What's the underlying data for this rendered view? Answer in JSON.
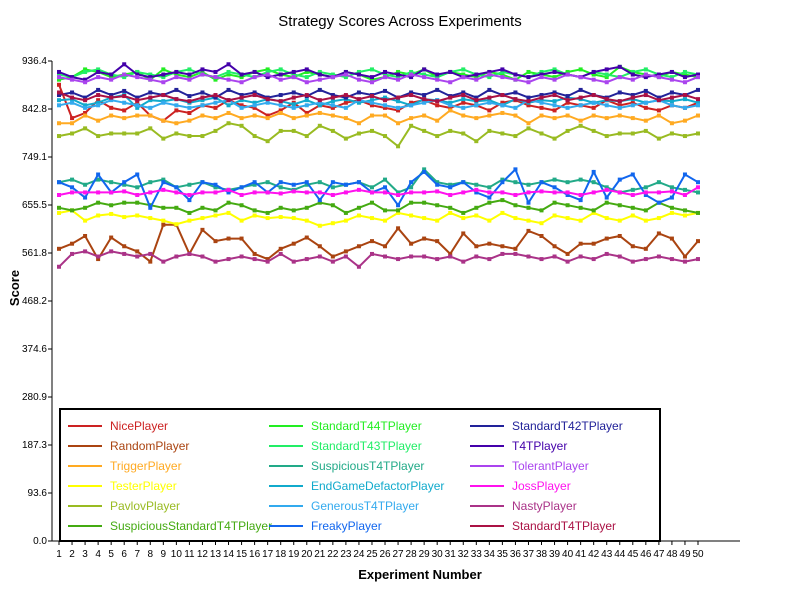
{
  "chart_data": {
    "type": "line",
    "title": "Strategy Scores Across Experiments",
    "xlabel": "Experiment Number",
    "ylabel": "Score",
    "ylim": [
      0,
      936.4
    ],
    "yticks": [
      "0.0",
      "93.6",
      "187.3",
      "280.9",
      "374.6",
      "468.2",
      "561.8",
      "655.5",
      "749.1",
      "842.8",
      "936.4"
    ],
    "x": [
      1,
      2,
      3,
      4,
      5,
      6,
      7,
      8,
      9,
      10,
      11,
      12,
      13,
      14,
      15,
      16,
      17,
      18,
      19,
      20,
      21,
      22,
      23,
      24,
      25,
      26,
      27,
      28,
      29,
      30,
      31,
      32,
      33,
      34,
      35,
      36,
      37,
      38,
      39,
      40,
      41,
      42,
      43,
      44,
      45,
      46,
      47,
      48,
      49,
      50
    ],
    "grid": false,
    "legend_position": "bottom",
    "series": [
      {
        "name": "NicePlayer",
        "color": "#cc2222",
        "values": [
          890,
          825,
          835,
          860,
          845,
          840,
          855,
          830,
          820,
          840,
          835,
          850,
          845,
          860,
          850,
          845,
          830,
          840,
          855,
          835,
          850,
          845,
          855,
          860,
          850,
          845,
          840,
          855,
          860,
          850,
          845,
          855,
          850,
          840,
          855,
          860,
          850,
          845,
          840,
          855,
          850,
          845,
          860,
          850,
          855,
          845,
          840,
          850,
          845,
          855
        ]
      },
      {
        "name": "RandomPlayer",
        "color": "#aa4411",
        "values": [
          570,
          580,
          595,
          550,
          592,
          575,
          565,
          545,
          617,
          617,
          560,
          607,
          585,
          590,
          590,
          560,
          550,
          570,
          580,
          592,
          575,
          555,
          565,
          575,
          585,
          575,
          610,
          580,
          590,
          585,
          560,
          600,
          575,
          580,
          575,
          570,
          605,
          595,
          575,
          560,
          580,
          580,
          590,
          595,
          575,
          570,
          600,
          590,
          555,
          585
        ]
      },
      {
        "name": "TriggerPlayer",
        "color": "#ffaa22",
        "values": [
          815,
          815,
          830,
          820,
          830,
          825,
          830,
          830,
          820,
          815,
          820,
          830,
          825,
          835,
          825,
          830,
          825,
          835,
          825,
          830,
          835,
          830,
          825,
          815,
          830,
          830,
          815,
          825,
          830,
          820,
          840,
          830,
          825,
          830,
          835,
          830,
          815,
          830,
          825,
          830,
          820,
          830,
          825,
          830,
          825,
          820,
          830,
          815,
          820,
          830
        ]
      },
      {
        "name": "TesterPlayer",
        "color": "#ffff00",
        "values": [
          640,
          645,
          625,
          635,
          638,
          632,
          635,
          630,
          625,
          618,
          625,
          630,
          635,
          640,
          625,
          635,
          630,
          632,
          630,
          625,
          615,
          620,
          625,
          635,
          630,
          625,
          640,
          635,
          630,
          625,
          640,
          630,
          635,
          625,
          640,
          630,
          625,
          620,
          635,
          630,
          625,
          640,
          630,
          625,
          635,
          625,
          630,
          640,
          635,
          640
        ]
      },
      {
        "name": "PavlovPlayer",
        "color": "#99bb22",
        "values": [
          790,
          795,
          805,
          790,
          795,
          795,
          795,
          805,
          785,
          795,
          790,
          790,
          800,
          815,
          810,
          790,
          780,
          800,
          800,
          790,
          810,
          800,
          785,
          795,
          800,
          790,
          770,
          810,
          800,
          790,
          800,
          795,
          780,
          800,
          795,
          790,
          805,
          795,
          785,
          800,
          810,
          800,
          790,
          795,
          795,
          800,
          785,
          795,
          790,
          795
        ]
      },
      {
        "name": "SuspiciousStandardT4TPlayer",
        "color": "#44aa11",
        "values": [
          650,
          645,
          650,
          660,
          655,
          660,
          660,
          655,
          650,
          650,
          640,
          650,
          645,
          660,
          655,
          645,
          640,
          650,
          645,
          650,
          660,
          655,
          640,
          650,
          660,
          645,
          645,
          660,
          660,
          655,
          650,
          640,
          650,
          660,
          665,
          655,
          650,
          645,
          660,
          655,
          650,
          645,
          660,
          655,
          650,
          645,
          660,
          650,
          645,
          640
        ]
      },
      {
        "name": "StandardT44TPlayer",
        "color": "#22ee22",
        "values": [
          900,
          905,
          920,
          915,
          905,
          910,
          915,
          900,
          920,
          910,
          905,
          915,
          900,
          910,
          905,
          915,
          920,
          910,
          905,
          915,
          910,
          905,
          915,
          910,
          900,
          905,
          915,
          910,
          920,
          905,
          915,
          910,
          905,
          915,
          910,
          900,
          915,
          910,
          905,
          915,
          920,
          910,
          905,
          925,
          915,
          910,
          905,
          915,
          910,
          905
        ]
      },
      {
        "name": "StandardT43TPlayer",
        "color": "#22ee66",
        "values": [
          910,
          905,
          915,
          920,
          910,
          905,
          915,
          910,
          905,
          915,
          920,
          910,
          905,
          915,
          910,
          905,
          915,
          920,
          910,
          905,
          915,
          910,
          905,
          915,
          920,
          910,
          905,
          915,
          910,
          905,
          915,
          920,
          910,
          905,
          915,
          910,
          905,
          915,
          920,
          910,
          905,
          915,
          910,
          905,
          915,
          920,
          910,
          905,
          915,
          910
        ]
      },
      {
        "name": "SuspiciousT4TPlayer",
        "color": "#22aa88",
        "values": [
          700,
          705,
          695,
          705,
          700,
          695,
          690,
          700,
          705,
          690,
          695,
          700,
          690,
          685,
          690,
          695,
          700,
          690,
          685,
          695,
          700,
          690,
          695,
          700,
          690,
          705,
          680,
          690,
          725,
          700,
          695,
          700,
          695,
          690,
          705,
          700,
          695,
          700,
          705,
          700,
          705,
          700,
          690,
          680,
          685,
          690,
          700,
          690,
          685,
          680
        ]
      },
      {
        "name": "EndGameDefactorPlayer",
        "color": "#11aacc",
        "values": [
          860,
          862,
          850,
          855,
          865,
          870,
          845,
          860,
          858,
          862,
          855,
          860,
          865,
          850,
          860,
          855,
          862,
          858,
          852,
          860,
          850,
          858,
          862,
          855,
          860,
          865,
          858,
          850,
          862,
          860,
          855,
          862,
          858,
          860,
          850,
          862,
          855,
          860,
          858,
          865,
          862,
          855,
          860,
          858,
          862,
          855,
          860,
          858,
          862,
          855
        ]
      },
      {
        "name": "GenerousT4TPlayer",
        "color": "#33aaee",
        "values": [
          850,
          855,
          845,
          850,
          860,
          855,
          850,
          845,
          855,
          850,
          845,
          850,
          855,
          860,
          845,
          850,
          855,
          850,
          845,
          850,
          855,
          850,
          845,
          860,
          855,
          850,
          845,
          850,
          855,
          860,
          850,
          845,
          850,
          855,
          850,
          845,
          860,
          855,
          850,
          845,
          850,
          855,
          850,
          845,
          850,
          855,
          860,
          850,
          845,
          850
        ]
      },
      {
        "name": "FreakyPlayer",
        "color": "#1166ee",
        "values": [
          700,
          690,
          670,
          715,
          680,
          700,
          715,
          650,
          700,
          690,
          665,
          700,
          695,
          680,
          690,
          700,
          680,
          700,
          695,
          700,
          665,
          700,
          695,
          700,
          680,
          690,
          655,
          700,
          720,
          695,
          690,
          700,
          680,
          670,
          700,
          725,
          660,
          700,
          690,
          675,
          665,
          720,
          670,
          705,
          715,
          675,
          660,
          670,
          715,
          700
        ]
      },
      {
        "name": "StandardT42TPlayer",
        "color": "#222299",
        "values": [
          870,
          875,
          865,
          880,
          870,
          878,
          865,
          875,
          870,
          880,
          868,
          875,
          865,
          880,
          870,
          875,
          865,
          870,
          875,
          868,
          880,
          870,
          865,
          875,
          870,
          878,
          865,
          875,
          870,
          880,
          868,
          875,
          865,
          880,
          870,
          875,
          865,
          870,
          875,
          868,
          880,
          870,
          865,
          875,
          870,
          878,
          865,
          875,
          870,
          880
        ]
      },
      {
        "name": "T4TPlayer",
        "color": "#4400aa",
        "values": [
          915,
          905,
          900,
          915,
          910,
          930,
          910,
          905,
          910,
          915,
          910,
          920,
          915,
          930,
          910,
          915,
          905,
          910,
          915,
          920,
          910,
          905,
          915,
          910,
          905,
          915,
          910,
          905,
          920,
          910,
          915,
          905,
          910,
          915,
          920,
          910,
          905,
          910,
          915,
          910,
          905,
          915,
          920,
          925,
          910,
          905,
          910,
          915,
          905,
          910
        ]
      },
      {
        "name": "TolerantPlayer",
        "color": "#aa44ee",
        "values": [
          905,
          900,
          895,
          905,
          900,
          910,
          905,
          900,
          895,
          905,
          900,
          910,
          905,
          900,
          895,
          905,
          910,
          900,
          905,
          895,
          900,
          905,
          910,
          900,
          895,
          905,
          900,
          910,
          905,
          900,
          895,
          905,
          900,
          910,
          905,
          900,
          895,
          905,
          900,
          910,
          905,
          900,
          895,
          905,
          900,
          910,
          905,
          900,
          895,
          905
        ]
      },
      {
        "name": "JossPlayer",
        "color": "#ff11ee",
        "values": [
          675,
          680,
          680,
          680,
          680,
          682,
          675,
          680,
          685,
          680,
          675,
          680,
          680,
          685,
          675,
          680,
          680,
          678,
          682,
          680,
          680,
          675,
          680,
          685,
          680,
          680,
          675,
          680,
          680,
          682,
          675,
          680,
          685,
          680,
          680,
          675,
          680,
          682,
          680,
          680,
          675,
          680,
          685,
          680,
          675,
          680,
          680,
          682,
          675,
          690
        ]
      },
      {
        "name": "NastyPlayer",
        "color": "#aa3388",
        "values": [
          535,
          560,
          565,
          555,
          565,
          560,
          555,
          560,
          545,
          555,
          560,
          555,
          545,
          550,
          555,
          550,
          545,
          560,
          545,
          550,
          555,
          545,
          555,
          535,
          560,
          555,
          550,
          555,
          555,
          550,
          555,
          545,
          555,
          550,
          560,
          560,
          555,
          550,
          555,
          545,
          555,
          550,
          560,
          555,
          545,
          550,
          555,
          550,
          545,
          550
        ]
      },
      {
        "name": "StandardT4TPlayer",
        "color": "#aa1144",
        "values": [
          875,
          865,
          860,
          870,
          865,
          868,
          860,
          865,
          870,
          862,
          858,
          865,
          870,
          860,
          865,
          870,
          862,
          858,
          865,
          870,
          860,
          865,
          870,
          862,
          868,
          860,
          865,
          870,
          862,
          858,
          865,
          870,
          860,
          865,
          870,
          862,
          858,
          865,
          870,
          860,
          865,
          870,
          862,
          858,
          865,
          870,
          860,
          865,
          870,
          862
        ]
      }
    ]
  }
}
